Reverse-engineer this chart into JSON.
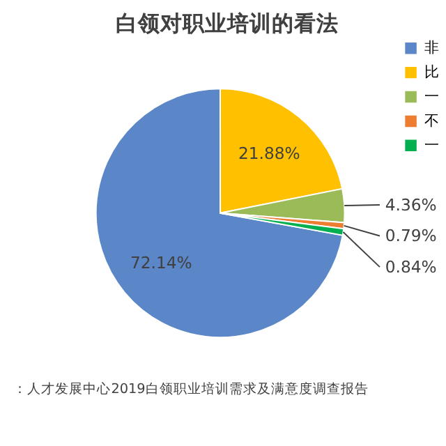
{
  "chart_data": {
    "type": "pie",
    "title": "白领对职业培训的看法",
    "categories": [
      "非",
      "比",
      "一",
      "不",
      "一"
    ],
    "values": [
      72.14,
      21.88,
      4.36,
      0.79,
      0.84
    ],
    "colors": [
      "#5b87c8",
      "#ffc000",
      "#9bbb59",
      "#ed7d31",
      "#00b050"
    ],
    "value_labels": [
      "72.14%",
      "21.88%",
      "4.36%",
      "0.79%",
      "0.84%"
    ],
    "legend": "right",
    "annotations": [
      "：人才发展中心2019白领职业培训需求及满意度调查报告"
    ]
  }
}
